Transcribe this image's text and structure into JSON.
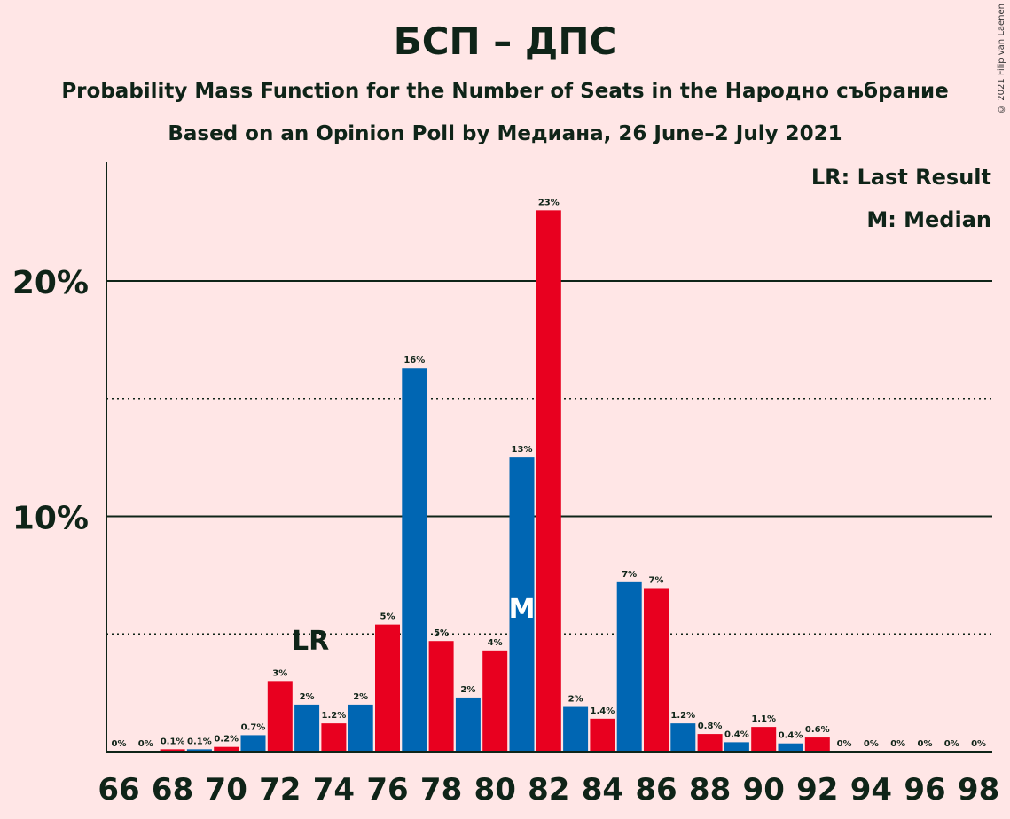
{
  "chart_data": {
    "type": "bar",
    "title": "БСП – ДПС",
    "subtitle": "Probability Mass Function for the Number of Seats in the Народно събрание",
    "subtitle2": "Based on an Opinion Poll by Медиана, 26 June–2 July 2021",
    "copyright": "© 2021 Filip van Laenen",
    "legend": {
      "lr": "LR: Last Result",
      "m": "M: Median",
      "placement": "top-right"
    },
    "x": [
      66,
      67,
      68,
      69,
      70,
      71,
      72,
      73,
      74,
      75,
      76,
      77,
      78,
      79,
      80,
      81,
      82,
      83,
      84,
      85,
      86,
      87,
      88,
      89,
      90,
      91,
      92,
      93,
      94,
      95,
      96,
      97,
      98
    ],
    "values": [
      0,
      0,
      0.1,
      0.1,
      0.2,
      0.7,
      3,
      2,
      1.2,
      2,
      5.4,
      16.3,
      4.7,
      2.3,
      4.3,
      12.5,
      23,
      1.9,
      1.4,
      7.2,
      6.95,
      1.2,
      0.75,
      0.4,
      1.05,
      0.35,
      0.6,
      0,
      0,
      0,
      0,
      0,
      0
    ],
    "labels": [
      "0%",
      "0%",
      "0.1%",
      "0.1%",
      "0.2%",
      "0.7%",
      "3%",
      "2%",
      "1.2%",
      "2%",
      "5%",
      "16%",
      "5%",
      "2%",
      "4%",
      "13%",
      "23%",
      "2%",
      "1.4%",
      "7%",
      "7%",
      "1.2%",
      "0.8%",
      "0.4%",
      "1.1%",
      "0.4%",
      "0.6%",
      "0%",
      "0%",
      "0%",
      "0%",
      "0%",
      "0%"
    ],
    "colors": {
      "even": "#E8001F",
      "odd": "#0066B3",
      "axis": "#0F2418"
    },
    "x_tick_labels": [
      "66",
      "68",
      "70",
      "72",
      "74",
      "76",
      "78",
      "80",
      "82",
      "84",
      "86",
      "88",
      "90",
      "92",
      "94",
      "96",
      "98"
    ],
    "y_tick_labels": [
      "10%",
      "20%"
    ],
    "ylim": [
      0,
      25
    ],
    "gridlines": {
      "solid": [
        10,
        20
      ],
      "dotted": [
        5,
        15
      ]
    },
    "last_result": {
      "seat": 73,
      "label": "LR"
    },
    "median": {
      "seat": 81,
      "label": "M"
    }
  }
}
